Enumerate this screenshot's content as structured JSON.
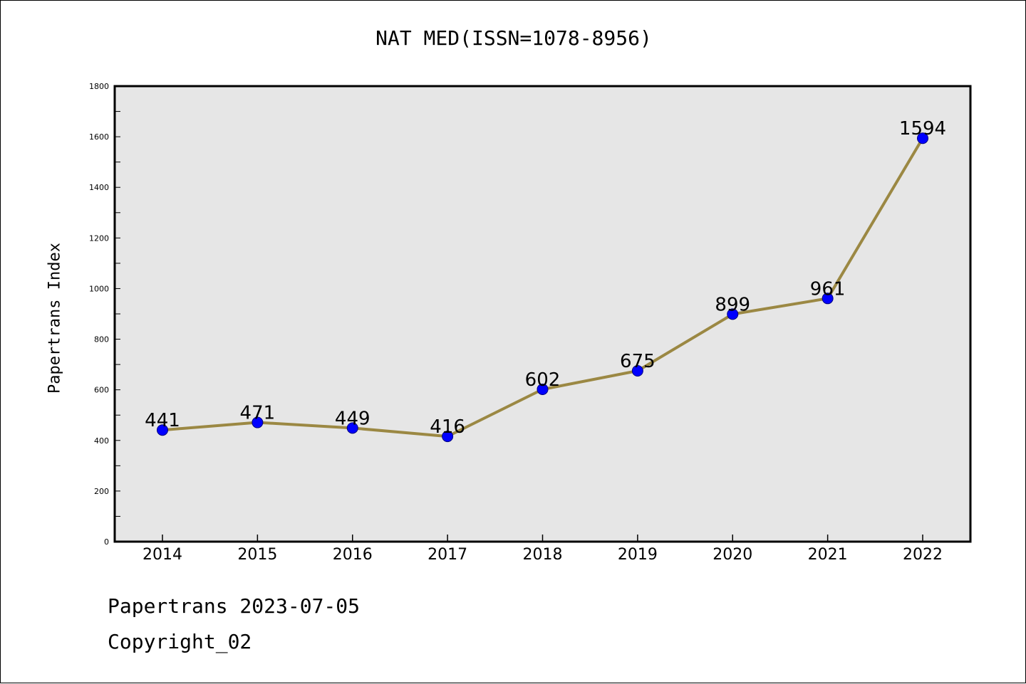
{
  "chart_data": {
    "type": "line",
    "title": "NAT MED(ISSN=1078-8956)",
    "xlabel": "",
    "ylabel": "Papertrans Index",
    "categories": [
      "2014",
      "2015",
      "2016",
      "2017",
      "2018",
      "2019",
      "2020",
      "2021",
      "2022"
    ],
    "values": [
      441,
      471,
      449,
      416,
      602,
      675,
      899,
      961,
      1594
    ],
    "data_labels": [
      "441",
      "471",
      "449",
      "416",
      "602",
      "675",
      "899",
      "961",
      "1594"
    ],
    "ylim": [
      0,
      1800
    ],
    "yticks": [
      0,
      200,
      400,
      600,
      800,
      1000,
      1200,
      1400,
      1600,
      1800
    ],
    "ytick_labels": [
      "0",
      "200",
      "400",
      "600",
      "800",
      "1000",
      "1200",
      "1400",
      "1600",
      "1800"
    ],
    "grid": false,
    "colors": {
      "line": "#9b8843",
      "marker_fill": "#0000ff",
      "marker_edge": "#000080",
      "plot_background": "#e6e6e6"
    }
  },
  "footer": {
    "line1": "Papertrans 2023-07-05",
    "line2": "Copyright_02"
  }
}
